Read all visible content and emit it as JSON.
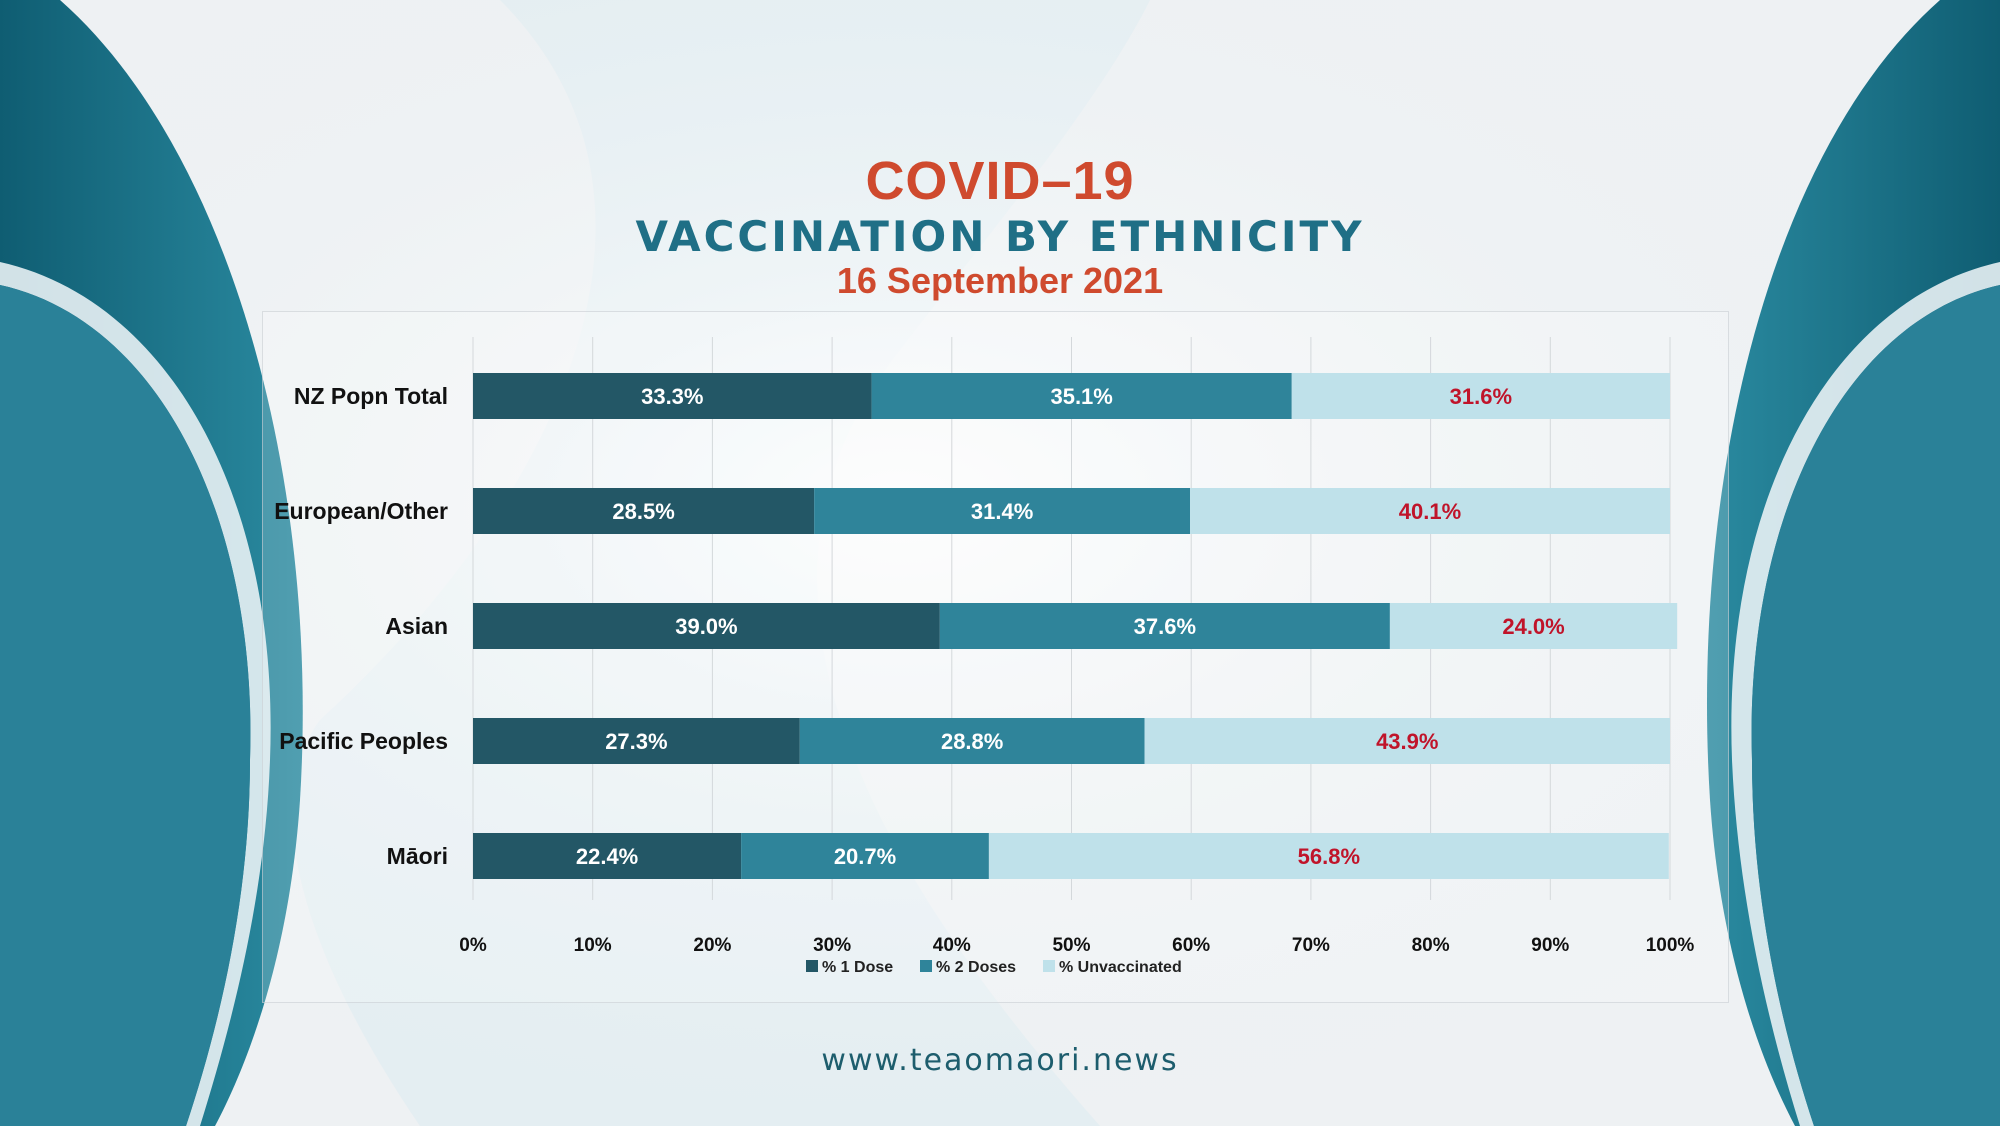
{
  "header": {
    "title": "COVID–19",
    "subtitle": "VACCINATION BY ETHNICITY",
    "date": "16 September 2021"
  },
  "footer": {
    "url": "www.teaomaori.news"
  },
  "colors": {
    "dose1": "#235766",
    "dose2": "#2f849a",
    "unvaccinated": "#bfe1ea",
    "label_light": "#ffffff",
    "label_red": "#c0142a",
    "title_red": "#cf4a2e",
    "title_teal": "#1f6f86",
    "decor_teal": "#186d82"
  },
  "chart_data": {
    "type": "bar",
    "orientation": "horizontal",
    "stacked": true,
    "percent_stacked": true,
    "categories": [
      "NZ Popn Total",
      "European/Other",
      "Asian",
      "Pacific Peoples",
      "Māori"
    ],
    "series": [
      {
        "name": "% 1 Dose",
        "values": [
          33.3,
          28.5,
          39.0,
          27.3,
          22.4
        ],
        "labels": [
          "33.3%",
          "28.5%",
          "39.0%",
          "27.3%",
          "22.4%"
        ]
      },
      {
        "name": "% 2 Doses",
        "values": [
          35.1,
          31.4,
          37.6,
          28.8,
          20.7
        ],
        "labels": [
          "35.1%",
          "31.4%",
          "37.6%",
          "28.8%",
          "20.7%"
        ]
      },
      {
        "name": "% Unvaccinated",
        "values": [
          31.6,
          40.1,
          24.0,
          43.9,
          56.8
        ],
        "labels": [
          "31.6%",
          "40.1%",
          "24.0%",
          "43.9%",
          "56.8%"
        ]
      }
    ],
    "xlim": [
      0,
      100
    ],
    "x_ticks": [
      "0%",
      "10%",
      "20%",
      "30%",
      "40%",
      "50%",
      "60%",
      "70%",
      "80%",
      "90%",
      "100%"
    ],
    "grid": "vertical",
    "legend_position": "bottom",
    "title": "",
    "xlabel": "",
    "ylabel": ""
  }
}
